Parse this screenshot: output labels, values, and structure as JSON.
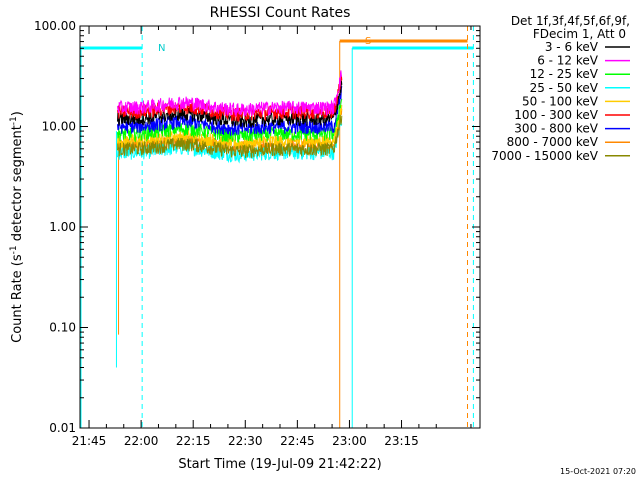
{
  "chart_data": {
    "type": "line",
    "title": "RHESSI Count Rates",
    "xlabel": "Start Time (19-Jul-09 21:42:22)",
    "ylabel_main": "Count Rate (s",
    "ylabel_sup": "-1",
    "ylabel_rest": " detector segment",
    "ylabel_sup2": "-1",
    "ylabel_close": ")",
    "y_scale": "log",
    "ylim": [
      0.01,
      100
    ],
    "xlim_minutes": [
      -17.6,
      97.6
    ],
    "x_tick_labels": [
      "21:45",
      "22:00",
      "22:15",
      "22:30",
      "22:45",
      "23:00",
      "23:15"
    ],
    "x_tick_minutes": [
      -15,
      0,
      15,
      30,
      45,
      60,
      75
    ],
    "y_tick_labels": [
      "0.01",
      "0.10",
      "1.00",
      "10.00",
      "100.00"
    ],
    "y_tick_values": [
      0.01,
      0.1,
      1,
      10,
      100
    ],
    "legend_header": [
      "Det 1f,3f,4f,5f,6f,9f,",
      "FDecim 1, Att 0"
    ],
    "legend_placement": "right",
    "series": [
      {
        "name": "3 - 6 keV",
        "color": "#000000",
        "level": 12.0
      },
      {
        "name": "6 - 12 keV",
        "color": "#ff00ff",
        "level": 15.5
      },
      {
        "name": "12 - 25 keV",
        "color": "#00ff00",
        "level": 8.5
      },
      {
        "name": "25 - 50 keV",
        "color": "#00ffff",
        "level": 5.5
      },
      {
        "name": "50 - 100 keV",
        "color": "#ffcc00",
        "level": 7.2
      },
      {
        "name": "100 - 300 keV",
        "color": "#ff0000",
        "level": 14.0
      },
      {
        "name": "300 - 800 keV",
        "color": "#0000ff",
        "level": 10.0
      },
      {
        "name": "800 - 7000 keV",
        "color": "#ff8800",
        "level": 6.5
      },
      {
        "name": "7000 - 15000 keV",
        "color": "#888800",
        "level": 6.0
      }
    ],
    "data_start_minute": -6.8,
    "data_end_minute": 57.8,
    "night_label": "N",
    "saa_label": "S",
    "night_color": "#00ffff",
    "saa_color": "#ff8800"
  },
  "footer_timestamp": "15-Oct-2021 07:20"
}
